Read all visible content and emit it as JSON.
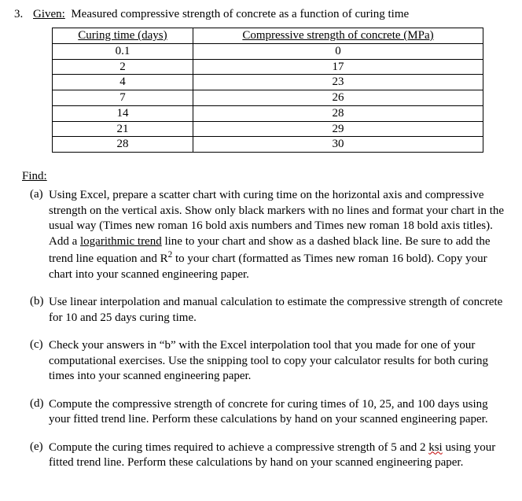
{
  "problem_number": "3.",
  "given_label": "Given:",
  "given_text": "Measured compressive strength of concrete as a function of curing time",
  "table": {
    "col1_header": "Curing time (days)",
    "col2_header": "Compressive strength of concrete (MPa)",
    "rows": [
      [
        "0.1",
        "0"
      ],
      [
        "2",
        "17"
      ],
      [
        "4",
        "23"
      ],
      [
        "7",
        "26"
      ],
      [
        "14",
        "28"
      ],
      [
        "21",
        "29"
      ],
      [
        "28",
        "30"
      ]
    ]
  },
  "find_label": "Find:",
  "parts": {
    "a": {
      "label": "(a)",
      "seg1": "Using Excel, prepare a scatter chart with curing time on the horizontal axis and compressive strength on the vertical axis.  Show only black markers with no lines and format your chart in the usual way (Times new roman 16 bold axis numbers and Times new roman 18 bold axis titles).  Add a ",
      "u1": "logarithmic trend",
      "seg2": " line to your chart and show as a dashed black line.  Be sure to add the trend line equation and R",
      "sup": "2",
      "seg3": " to your chart (formatted as Times new roman 16 bold).  Copy your chart into your scanned engineering paper."
    },
    "b": {
      "label": "(b)",
      "text": "Use linear interpolation and manual calculation to estimate the compressive strength of concrete for 10 and 25 days curing time."
    },
    "c": {
      "label": "(c)",
      "text": "Check your answers in “b” with the Excel interpolation tool that you made for one of your computational exercises.  Use the snipping tool to copy your calculator results for both curing times into your scanned engineering paper."
    },
    "d": {
      "label": "(d)",
      "text": "Compute the compressive strength of concrete for curing times of 10, 25, and 100 days using your fitted trend line.  Perform these calculations by hand on your scanned engineering paper."
    },
    "e": {
      "label": "(e)",
      "seg1": "Compute the curing times required to achieve a compressive strength of 5 and 2 ",
      "squiggle": "ksi",
      "seg2": " using your fitted trend line.  Perform these calculations by hand on your scanned engineering paper."
    }
  }
}
